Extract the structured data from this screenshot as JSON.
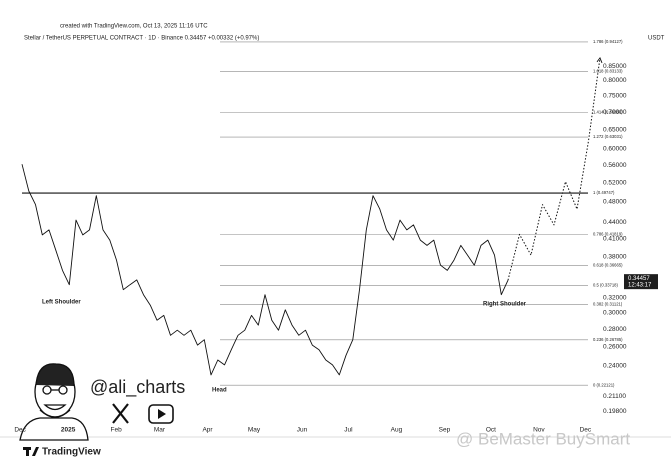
{
  "header": {
    "created": "created with TradingView.com, Oct 13, 2025 11:16 UTC",
    "symbol": "Stellar / TetherUS PERPETUAL CONTRACT · 1D · Binance  0.34457  +0.00332 (+0.97%)",
    "currency": "USDT"
  },
  "chart_data": {
    "type": "line",
    "color": "#111111",
    "log_scale": true,
    "grid": false,
    "values": [
      0.562,
      0.502,
      0.474,
      0.417,
      0.426,
      0.391,
      0.359,
      0.338,
      0.444,
      0.417,
      0.426,
      0.492,
      0.426,
      0.408,
      0.375,
      0.331,
      0.338,
      0.345,
      0.324,
      0.31,
      0.291,
      0.297,
      0.273,
      0.279,
      0.273,
      0.279,
      0.262,
      0.268,
      0.231,
      0.246,
      0.241,
      0.257,
      0.273,
      0.279,
      0.297,
      0.285,
      0.324,
      0.291,
      0.279,
      0.304,
      0.285,
      0.273,
      0.279,
      0.262,
      0.257,
      0.246,
      0.241,
      0.231,
      0.251,
      0.268,
      0.331,
      0.426,
      0.492,
      0.465,
      0.426,
      0.408,
      0.444,
      0.426,
      0.435,
      0.408,
      0.399,
      0.408,
      0.367,
      0.359,
      0.375,
      0.399,
      0.383,
      0.367,
      0.399,
      0.408,
      0.383,
      0.324,
      0.34457
    ],
    "projection": {
      "values": [
        0.34457,
        0.418,
        0.383,
        0.474,
        0.435,
        0.522,
        0.465,
        0.62,
        0.88
      ],
      "color": "#111111"
    },
    "ylim": [
      0.191,
      0.99
    ],
    "yticks": [
      {
        "value": 0.85,
        "label": "0.85000"
      },
      {
        "value": 0.8,
        "label": "0.80000"
      },
      {
        "value": 0.75,
        "label": "0.75000"
      },
      {
        "value": 0.7,
        "label": "0.70000"
      },
      {
        "value": 0.65,
        "label": "0.65000"
      },
      {
        "value": 0.6,
        "label": "0.60000"
      },
      {
        "value": 0.56,
        "label": "0.56000"
      },
      {
        "value": 0.52,
        "label": "0.52000"
      },
      {
        "value": 0.48,
        "label": "0.48000"
      },
      {
        "value": 0.44,
        "label": "0.44000"
      },
      {
        "value": 0.41,
        "label": "0.41000"
      },
      {
        "value": 0.38,
        "label": "0.38000"
      },
      {
        "value": 0.32,
        "label": "0.32000"
      },
      {
        "value": 0.3,
        "label": "0.30000"
      },
      {
        "value": 0.28,
        "label": "0.28000"
      },
      {
        "value": 0.26,
        "label": "0.26000"
      },
      {
        "value": 0.24,
        "label": "0.24000"
      },
      {
        "value": 0.211,
        "label": "0.21100"
      },
      {
        "value": 0.198,
        "label": "0.19800"
      }
    ],
    "xlim": [
      -13,
      368
    ],
    "xticks": [
      {
        "value": 0,
        "label": "Dec"
      },
      {
        "value": 31,
        "label": "2025"
      },
      {
        "value": 62,
        "label": "Feb"
      },
      {
        "value": 90,
        "label": "Mar"
      },
      {
        "value": 121,
        "label": "Apr"
      },
      {
        "value": 151,
        "label": "May"
      },
      {
        "value": 182,
        "label": "Jun"
      },
      {
        "value": 212,
        "label": "Jul"
      },
      {
        "value": 243,
        "label": "Aug"
      },
      {
        "value": 274,
        "label": "Sep"
      },
      {
        "value": 304,
        "label": "Oct"
      },
      {
        "value": 335,
        "label": "Nov"
      },
      {
        "value": 365,
        "label": "Dec"
      }
    ],
    "fib_levels": [
      {
        "label": "1.786 (0.94127)",
        "value": 0.94127
      },
      {
        "label": "1.618 (0.83133)",
        "value": 0.83133
      },
      {
        "label": "1.414 (0.69863)",
        "value": 0.69863
      },
      {
        "label": "1.272 (0.63031)",
        "value": 0.63031
      },
      {
        "label": "1 (0.49747)",
        "value": 0.49747,
        "emphasis": true
      },
      {
        "label": "0.786 (0.41819)",
        "value": 0.41819
      },
      {
        "label": "0.618 (0.36665)",
        "value": 0.36665
      },
      {
        "label": "0.5 (0.33718)",
        "value": 0.33718
      },
      {
        "label": "0.382 (0.31121)",
        "value": 0.31121
      },
      {
        "label": "0.236 (0.26785)",
        "value": 0.26785
      },
      {
        "label": "0 (0.22121)",
        "value": 0.22121
      }
    ],
    "annotations": [
      "Left Shoulder",
      "Head",
      "Right Shoulder"
    ],
    "price_tag": {
      "value": 0.34457,
      "countdown": "12:43:17"
    }
  },
  "branding": {
    "handle": "@ali_charts",
    "watermark": "@ BeMaster BuySmart",
    "logo": "TradingView"
  }
}
